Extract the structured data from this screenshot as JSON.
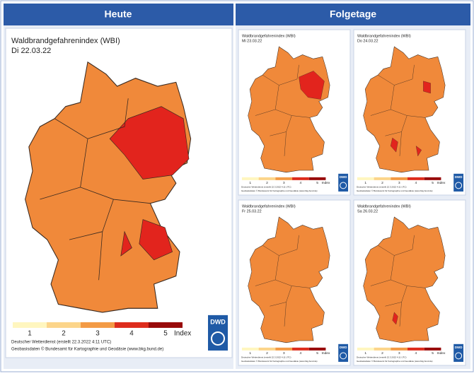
{
  "header": {
    "left": "Heute",
    "right": "Folgetage"
  },
  "today": {
    "title": "Waldbrandgefahrenindex (WBI)",
    "date": "Di 22.03.22",
    "legend": {
      "levels": [
        "1",
        "2",
        "3",
        "4",
        "5"
      ],
      "unit": "Index"
    },
    "credit": [
      "Deutscher Wetterdienst (erstellt 22.3.2022 4:11 UTC)",
      "Geobasisdaten © Bundesamt für Kartographie und Geodäsie (www.bkg.bund.de)"
    ],
    "logo": "DWD"
  },
  "forecast": [
    {
      "title": "Waldbrandgefahrenindex (WBI)",
      "date": "Mi 23.03.22",
      "legend": {
        "levels": [
          "1",
          "2",
          "3",
          "4",
          "5"
        ],
        "unit": "Index"
      },
      "credit": [
        "Deutscher Wetterdienst (erstellt 22.3.2022 4:11 UTC)",
        "Geobasisdaten © Bundesamt für Kartographie und Geodäsie (www.bkg.bund.de)"
      ],
      "logo": "DWD"
    },
    {
      "title": "Waldbrandgefahrenindex (WBI)",
      "date": "Do 24.03.22",
      "legend": {
        "levels": [
          "1",
          "2",
          "3",
          "4",
          "5"
        ],
        "unit": "Index"
      },
      "credit": [
        "Deutscher Wetterdienst (erstellt 22.3.2022 4:11 UTC)",
        "Geobasisdaten © Bundesamt für Kartographie und Geodäsie (www.bkg.bund.de)"
      ],
      "logo": "DWD"
    },
    {
      "title": "Waldbrandgefahrenindex (WBI)",
      "date": "Fr 25.03.22",
      "legend": {
        "levels": [
          "1",
          "2",
          "3",
          "4",
          "5"
        ],
        "unit": "Index"
      },
      "credit": [
        "Deutscher Wetterdienst (erstellt 22.3.2022 4:11 UTC)",
        "Geobasisdaten © Bundesamt für Kartographie und Geodäsie (www.bkg.bund.de)"
      ],
      "logo": "DWD"
    },
    {
      "title": "Waldbrandgefahrenindex (WBI)",
      "date": "Sa 26.03.22",
      "legend": {
        "levels": [
          "1",
          "2",
          "3",
          "4",
          "5"
        ],
        "unit": "Index"
      },
      "credit": [
        "Deutscher Wetterdienst (erstellt 22.3.2022 4:11 UTC)",
        "Geobasisdaten © Bundesamt für Kartographie und Geodäsie (www.bkg.bund.de)"
      ],
      "logo": "DWD"
    }
  ]
}
